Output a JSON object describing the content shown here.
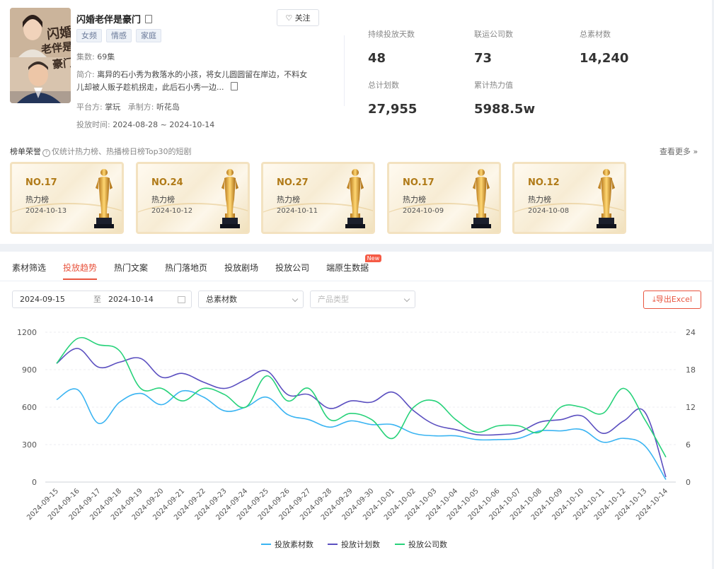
{
  "drama": {
    "poster_text": [
      "闪婚",
      "老伴是",
      "豪门"
    ],
    "title": "闪婚老伴是豪门",
    "follow_label": "关注",
    "tags": [
      "女频",
      "情感",
      "家庭"
    ],
    "episodes_label": "集数:",
    "episodes_value": "69集",
    "desc_label": "简介:",
    "desc_text": "离异的石小秀为救落水的小孩，将女儿圆圆留在岸边，不料女儿却被人贩子趁机拐走，此后石小秀一边...",
    "platform_label": "平台方:",
    "platform_value": "掌玩",
    "producer_label": "承制方:",
    "producer_value": "听花岛",
    "period_label": "投放时间:",
    "period_value": "2024-08-28 ~ 2024-10-14"
  },
  "stats": [
    {
      "label": "持续投放天数",
      "value": "48"
    },
    {
      "label": "联运公司数",
      "value": "73"
    },
    {
      "label": "总素材数",
      "value": "14,240"
    },
    {
      "label": "总计划数",
      "value": "27,955"
    },
    {
      "label": "累计热力值",
      "value": "5988.5w"
    }
  ],
  "honors": {
    "title": "榜单荣誉",
    "note": "仅统计热力榜、热播榜日榜Top30的短剧",
    "see_more": "查看更多",
    "items": [
      {
        "rank": "NO.17",
        "board": "热力榜",
        "date": "2024-10-13"
      },
      {
        "rank": "NO.24",
        "board": "热力榜",
        "date": "2024-10-12"
      },
      {
        "rank": "NO.27",
        "board": "热力榜",
        "date": "2024-10-11"
      },
      {
        "rank": "NO.17",
        "board": "热力榜",
        "date": "2024-10-09"
      },
      {
        "rank": "NO.12",
        "board": "热力榜",
        "date": "2024-10-08"
      }
    ]
  },
  "tabs": [
    {
      "label": "素材筛选",
      "active": false
    },
    {
      "label": "投放趋势",
      "active": true
    },
    {
      "label": "热门文案",
      "active": false
    },
    {
      "label": "热门落地页",
      "active": false
    },
    {
      "label": "投放剧场",
      "active": false
    },
    {
      "label": "投放公司",
      "active": false
    },
    {
      "label": "端原生数据",
      "active": false,
      "badge": "New"
    }
  ],
  "filters": {
    "date_start": "2024-09-15",
    "date_sep": "至",
    "date_end": "2024-10-14",
    "metric_value": "总素材数",
    "product_placeholder": "产品类型",
    "export_label": "导出Excel"
  },
  "colors": {
    "accent": "#e8553f",
    "series_material": "#3ab4f2",
    "series_plan": "#5b4fc0",
    "series_company": "#27d27a"
  },
  "chart_data": {
    "type": "line",
    "x": [
      "2024-09-15",
      "2024-09-16",
      "2024-09-17",
      "2024-09-18",
      "2024-09-19",
      "2024-09-20",
      "2024-09-21",
      "2024-09-22",
      "2024-09-23",
      "2024-09-24",
      "2024-09-25",
      "2024-09-26",
      "2024-09-27",
      "2024-09-28",
      "2024-09-29",
      "2024-09-30",
      "2024-10-01",
      "2024-10-02",
      "2024-10-03",
      "2024-10-04",
      "2024-10-05",
      "2024-10-06",
      "2024-10-07",
      "2024-10-08",
      "2024-10-09",
      "2024-10-10",
      "2024-10-11",
      "2024-10-12",
      "2024-10-13",
      "2024-10-14"
    ],
    "y_left_ticks": [
      0,
      300,
      600,
      900,
      1200
    ],
    "y_right_ticks": [
      0,
      6,
      12,
      18,
      24
    ],
    "ylim_left": [
      0,
      1200
    ],
    "ylim_right": [
      0,
      24
    ],
    "grid": true,
    "legend_position": "bottom",
    "series": [
      {
        "name": "投放素材数",
        "axis": "left",
        "color": "#3ab4f2",
        "values": [
          660,
          740,
          470,
          640,
          710,
          620,
          730,
          680,
          570,
          600,
          680,
          540,
          500,
          440,
          490,
          460,
          460,
          390,
          370,
          370,
          340,
          340,
          350,
          410,
          410,
          420,
          320,
          350,
          290,
          20
        ]
      },
      {
        "name": "投放计划数",
        "axis": "left",
        "color": "#5b4fc0",
        "values": [
          950,
          1070,
          920,
          960,
          990,
          840,
          870,
          800,
          750,
          820,
          890,
          700,
          700,
          590,
          650,
          640,
          720,
          570,
          460,
          420,
          380,
          380,
          400,
          480,
          500,
          530,
          390,
          490,
          560,
          40
        ]
      },
      {
        "name": "投放公司数",
        "axis": "right",
        "color": "#27d27a",
        "values": [
          19,
          23,
          22,
          21,
          15,
          15,
          13,
          15,
          14,
          12,
          17,
          13,
          15,
          10,
          11,
          10,
          7,
          12,
          13,
          10,
          8,
          9,
          9,
          8,
          12,
          12,
          11,
          15,
          10,
          4
        ]
      }
    ]
  }
}
